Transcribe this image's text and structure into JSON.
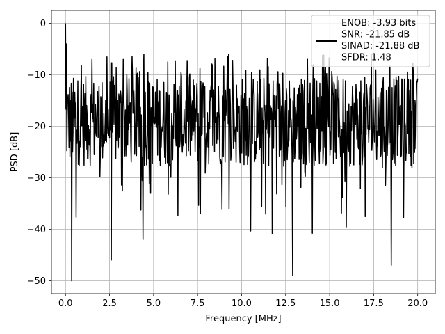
{
  "chart_data": {
    "type": "line",
    "xlabel": "Frequency [MHz]",
    "ylabel": "PSD [dB]",
    "xlim": [
      -0.8,
      21.0
    ],
    "ylim": [
      -52.5,
      2.5
    ],
    "xticks": [
      0.0,
      2.5,
      5.0,
      7.5,
      10.0,
      12.5,
      15.0,
      17.5,
      20.0
    ],
    "xtick_labels": [
      "0.0",
      "2.5",
      "5.0",
      "7.5",
      "10.0",
      "12.5",
      "15.0",
      "17.5",
      "20.0"
    ],
    "yticks": [
      0,
      -10,
      -20,
      -30,
      -40,
      -50
    ],
    "ytick_labels": [
      "0",
      "−10",
      "−20",
      "−30",
      "−40",
      "−50"
    ],
    "grid": true,
    "legend_placement": "top-right",
    "series": [
      {
        "name": "",
        "color": "#000000",
        "x_range": [
          0.0,
          20.0
        ],
        "num_points": 800,
        "baseline_db": -19,
        "fluctuation_db": 5.5,
        "peak_max_db": -6,
        "trough_min_db": -50,
        "highlights": [
          {
            "x": 0.0,
            "y": 0.0
          },
          {
            "x": 0.05,
            "y": -4.0
          },
          {
            "x": 0.35,
            "y": -50.0
          },
          {
            "x": 2.6,
            "y": -46.0
          },
          {
            "x": 4.4,
            "y": -42.0
          },
          {
            "x": 4.45,
            "y": -6.0
          },
          {
            "x": 12.9,
            "y": -49.0
          },
          {
            "x": 18.5,
            "y": -47.0
          }
        ]
      }
    ],
    "legend": {
      "lines": [
        "ENOB: -3.93 bits",
        "SNR: -21.85 dB",
        "SINAD: -21.88 dB",
        "SFDR: 1.48"
      ]
    }
  }
}
